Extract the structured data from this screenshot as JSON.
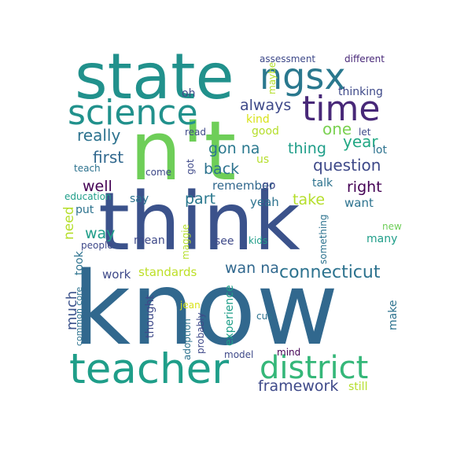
{
  "words": [
    {
      "text": "know",
      "color": "#31688e"
    },
    {
      "text": "think",
      "color": "#3b528b"
    },
    {
      "text": "n't",
      "color": "#6ece58"
    },
    {
      "text": "state",
      "color": "#21918c"
    },
    {
      "text": "teacher",
      "color": "#1f9e89"
    },
    {
      "text": "science",
      "color": "#21918c"
    },
    {
      "text": "district",
      "color": "#35b779"
    },
    {
      "text": "ngsx",
      "color": "#2a788e"
    },
    {
      "text": "time",
      "color": "#482878"
    },
    {
      "text": "connecticut",
      "color": "#2c728e"
    },
    {
      "text": "framework",
      "color": "#3e4989"
    },
    {
      "text": "question",
      "color": "#3e4989"
    },
    {
      "text": "always",
      "color": "#3e4989"
    },
    {
      "text": "really",
      "color": "#2c728e"
    },
    {
      "text": "first",
      "color": "#31688e"
    },
    {
      "text": "gon na",
      "color": "#2a788e"
    },
    {
      "text": "back",
      "color": "#2c728e"
    },
    {
      "text": "year",
      "color": "#22a884"
    },
    {
      "text": "thing",
      "color": "#1f9e89"
    },
    {
      "text": "one",
      "color": "#7ad151"
    },
    {
      "text": "well",
      "color": "#440154"
    },
    {
      "text": "right",
      "color": "#440154"
    },
    {
      "text": "take",
      "color": "#b5de2b"
    },
    {
      "text": "part",
      "color": "#2a788e"
    },
    {
      "text": "standards",
      "color": "#bddf26"
    },
    {
      "text": "wan na",
      "color": "#31688e"
    },
    {
      "text": "way",
      "color": "#1f9e89"
    },
    {
      "text": "need",
      "color": "#b5de2b"
    },
    {
      "text": "much",
      "color": "#3b528b"
    },
    {
      "text": "work",
      "color": "#3e4989"
    },
    {
      "text": "remember",
      "color": "#31688e"
    },
    {
      "text": "yeah",
      "color": "#2c728e"
    },
    {
      "text": "want",
      "color": "#2c728e"
    },
    {
      "text": "thinking",
      "color": "#3e4989"
    },
    {
      "text": "kind",
      "color": "#d8e219"
    },
    {
      "text": "good",
      "color": "#b5de2b"
    },
    {
      "text": "oh",
      "color": "#3e4989"
    },
    {
      "text": "lot",
      "color": "#2c728e"
    },
    {
      "text": "us",
      "color": "#b5de2b"
    },
    {
      "text": "talk",
      "color": "#2c728e"
    },
    {
      "text": "go",
      "color": "#3e4989"
    },
    {
      "text": "say",
      "color": "#2c728e"
    },
    {
      "text": "put",
      "color": "#2c728e"
    },
    {
      "text": "teach",
      "color": "#2c728e"
    },
    {
      "text": "come",
      "color": "#3e4989"
    },
    {
      "text": "got",
      "color": "#3e4989"
    },
    {
      "text": "read",
      "color": "#3e4989"
    },
    {
      "text": "let",
      "color": "#3e4989"
    },
    {
      "text": "education",
      "color": "#1f9e89"
    },
    {
      "text": "assessment",
      "color": "#3e4989"
    },
    {
      "text": "different",
      "color": "#482878"
    },
    {
      "text": "maybe",
      "color": "#b5de2b"
    },
    {
      "text": "mean",
      "color": "#3e4989"
    },
    {
      "text": "see",
      "color": "#3e4989"
    },
    {
      "text": "kids",
      "color": "#1f9e89"
    },
    {
      "text": "many",
      "color": "#1f9e89"
    },
    {
      "text": "new",
      "color": "#6ece58"
    },
    {
      "text": "took",
      "color": "#2c728e"
    },
    {
      "text": "people",
      "color": "#3e4989"
    },
    {
      "text": "maggie",
      "color": "#b5de2b"
    },
    {
      "text": "something",
      "color": "#2c728e"
    },
    {
      "text": "common core",
      "color": "#2c728e"
    },
    {
      "text": "thought",
      "color": "#3e4989"
    },
    {
      "text": "jean",
      "color": "#d8e219"
    },
    {
      "text": "cus",
      "color": "#2c728e"
    },
    {
      "text": "make",
      "color": "#2c728e"
    },
    {
      "text": "experience",
      "color": "#1f9e89"
    },
    {
      "text": "adoption",
      "color": "#2c728e"
    },
    {
      "text": "probably",
      "color": "#3e4989"
    },
    {
      "text": "mind",
      "color": "#440154"
    },
    {
      "text": "model",
      "color": "#3e4989"
    },
    {
      "text": "still",
      "color": "#b5de2b"
    }
  ]
}
